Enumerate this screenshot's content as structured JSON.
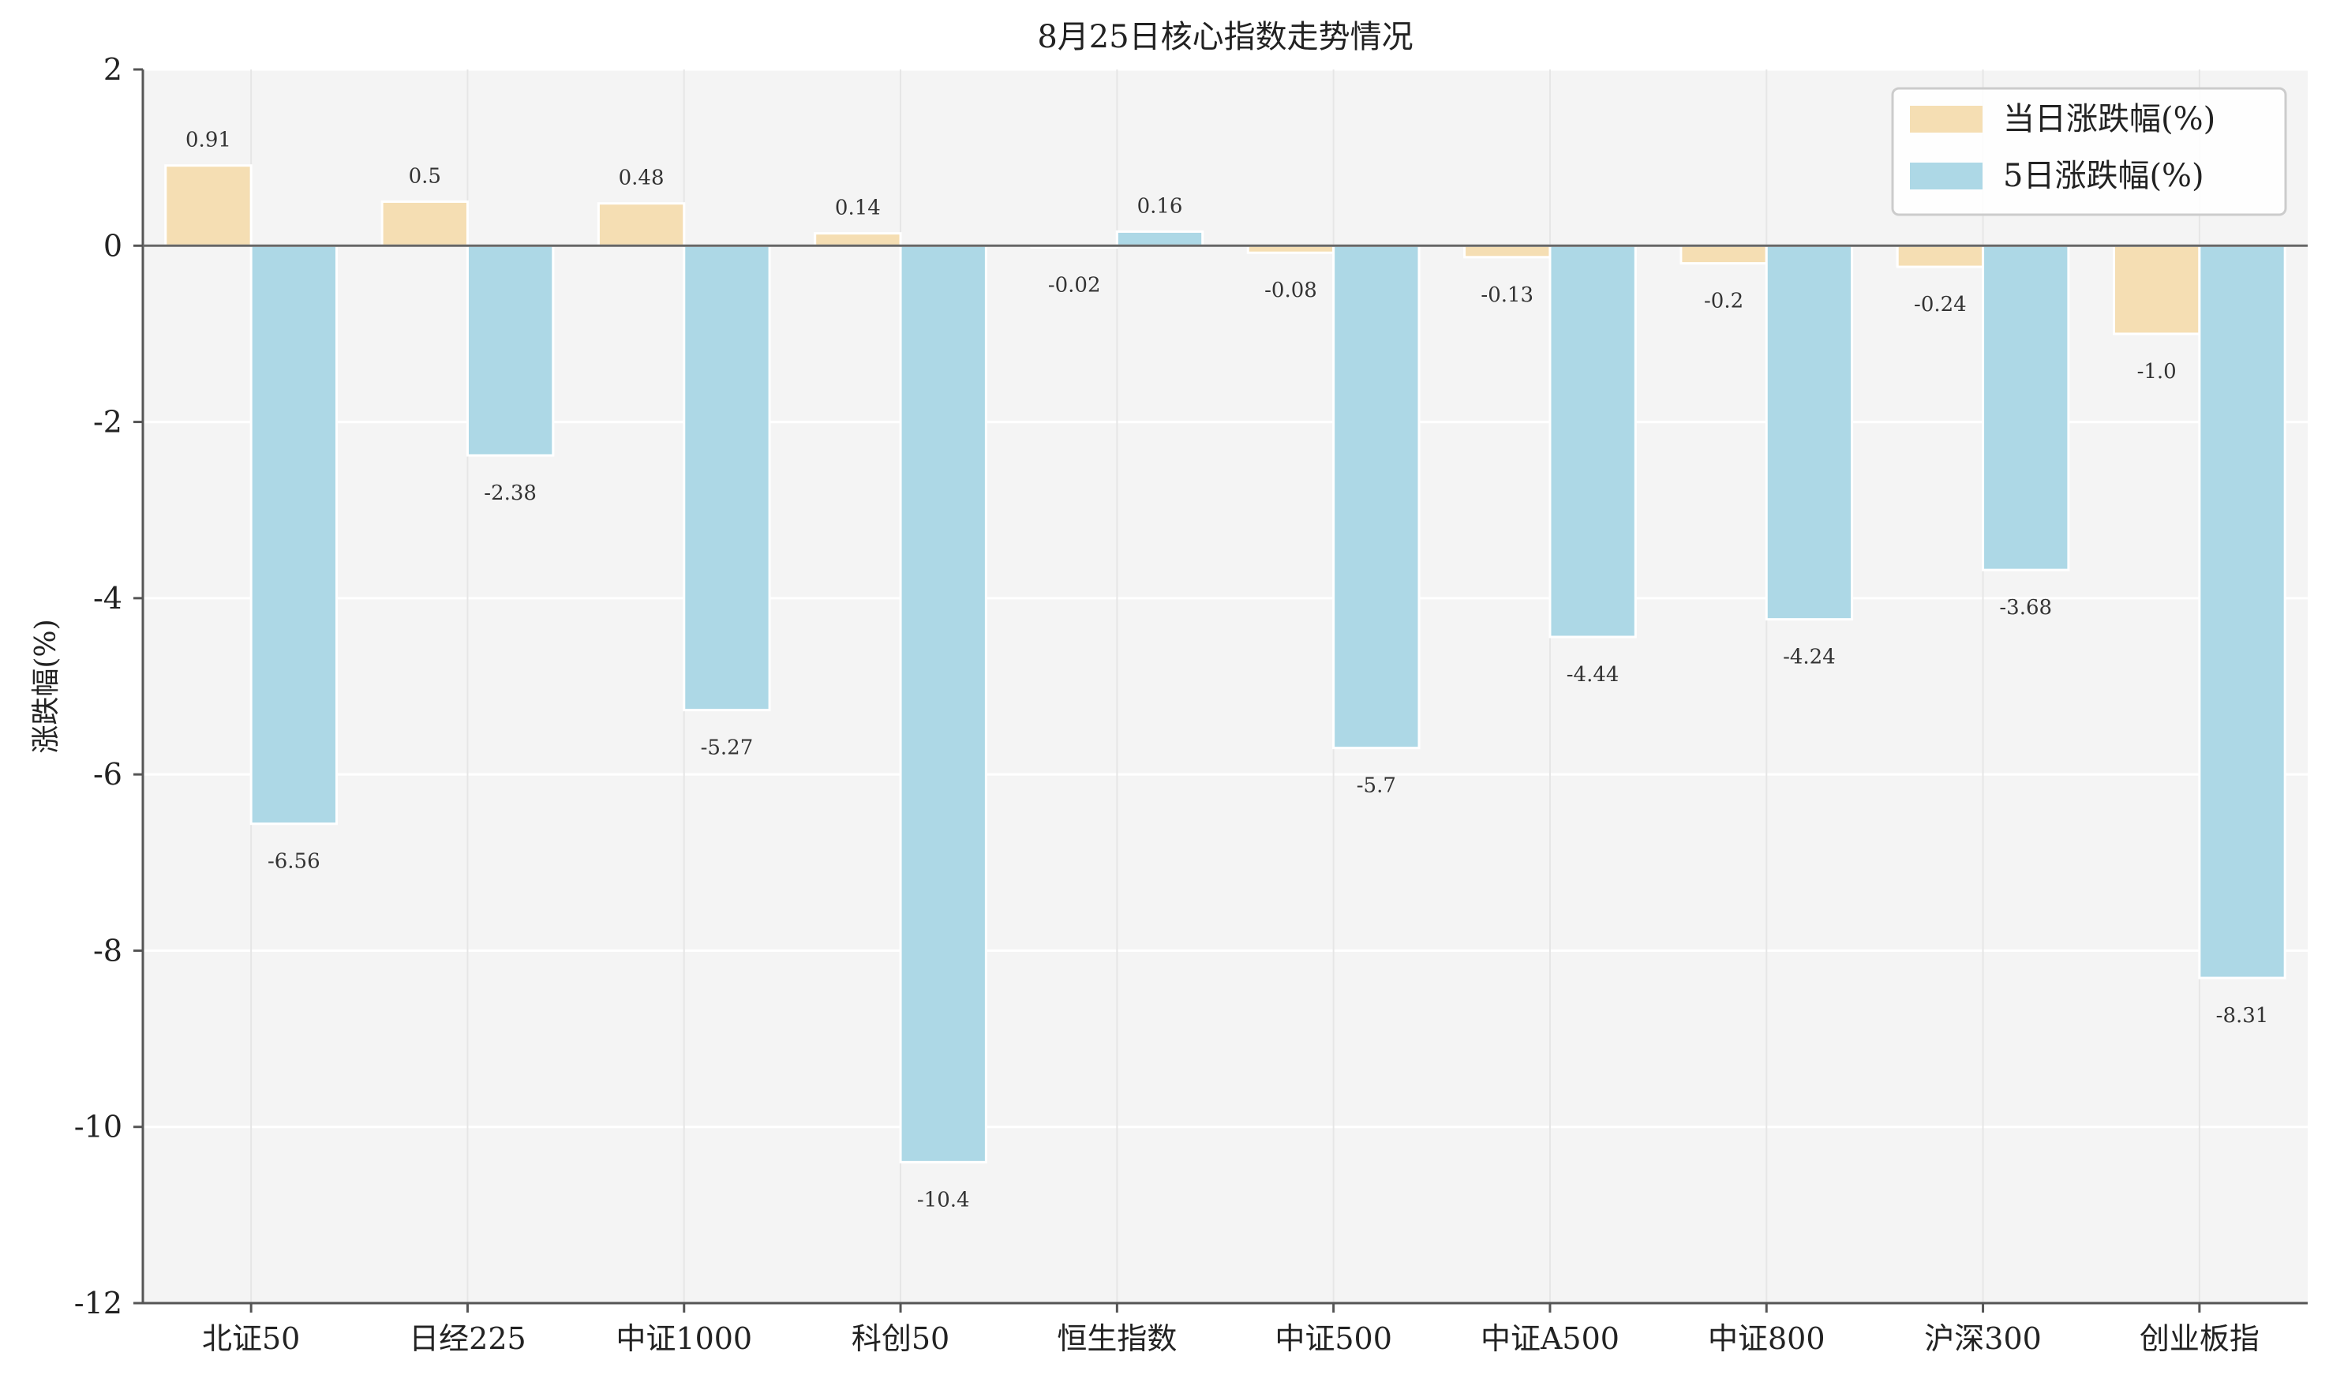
{
  "chart_data": {
    "type": "bar",
    "title": "8月25日核心指数走势情况",
    "xlabel": "",
    "ylabel": "涨跌幅(%)",
    "ylim": [
      -12,
      2
    ],
    "yticks": [
      2,
      0,
      -2,
      -4,
      -6,
      -8,
      -10,
      -12
    ],
    "grid": true,
    "legend_position": "top-right",
    "categories": [
      "北证50",
      "日经225",
      "中证1000",
      "科创50",
      "恒生指数",
      "中证500",
      "中证A500",
      "中证800",
      "沪深300",
      "创业板指"
    ],
    "series": [
      {
        "name": "当日涨跌幅(%)",
        "color": "#f5deb3",
        "values": [
          0.91,
          0.5,
          0.48,
          0.14,
          -0.02,
          -0.08,
          -0.13,
          -0.2,
          -0.24,
          -1.0
        ],
        "labels": [
          "0.91",
          "0.5",
          "0.48",
          "0.14",
          "-0.02",
          "-0.08",
          "-0.13",
          "-0.2",
          "-0.24",
          "-1.0"
        ]
      },
      {
        "name": "5日涨跌幅(%)",
        "color": "#add8e6",
        "values": [
          -6.56,
          -2.38,
          -5.27,
          -10.4,
          0.16,
          -5.7,
          -4.44,
          -4.24,
          -3.68,
          -8.31
        ],
        "labels": [
          "-6.56",
          "-2.38",
          "-5.27",
          "-10.4",
          "0.16",
          "-5.7",
          "-4.44",
          "-4.24",
          "-3.68",
          "-8.31"
        ]
      }
    ],
    "colors": {
      "plot_background": "#f4f4f4",
      "grid": "#ffffff",
      "axis": "#555555",
      "zero_line": "#666666"
    }
  }
}
